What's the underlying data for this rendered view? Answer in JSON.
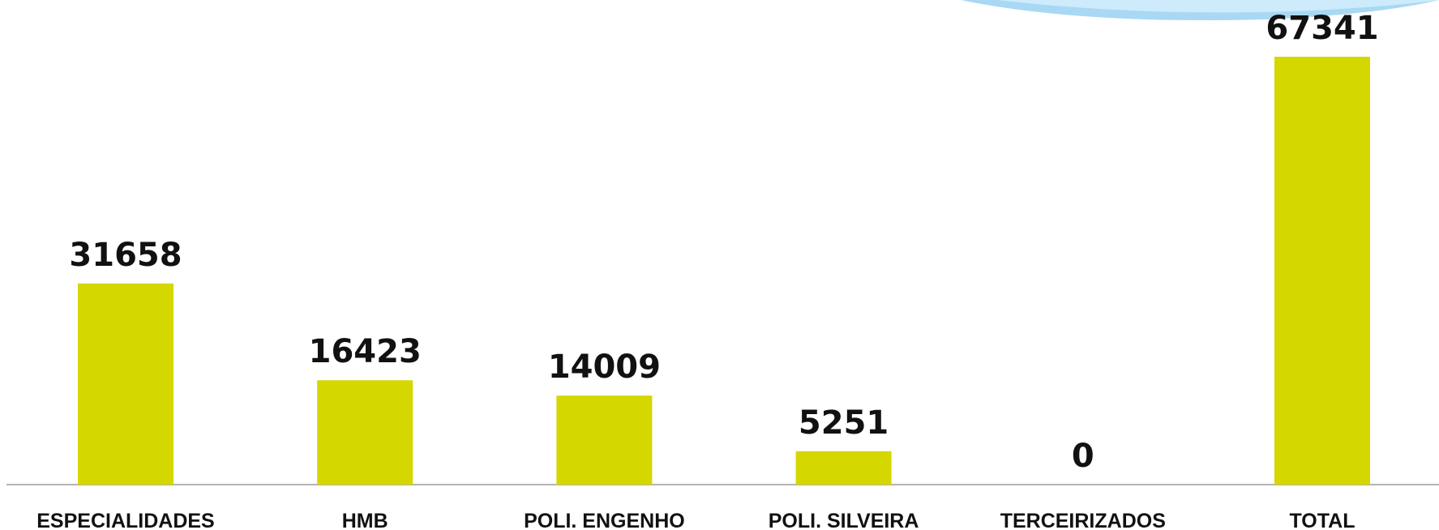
{
  "chart_data": {
    "type": "bar",
    "categories": [
      "ESPECIALIDADES",
      "HMB",
      "POLI. ENGENHO",
      "POLI. SILVEIRA",
      "TERCEIRIZADOS",
      "TOTAL"
    ],
    "values": [
      31658,
      16423,
      14009,
      5251,
      0,
      67341
    ],
    "color": "#d4d700"
  }
}
